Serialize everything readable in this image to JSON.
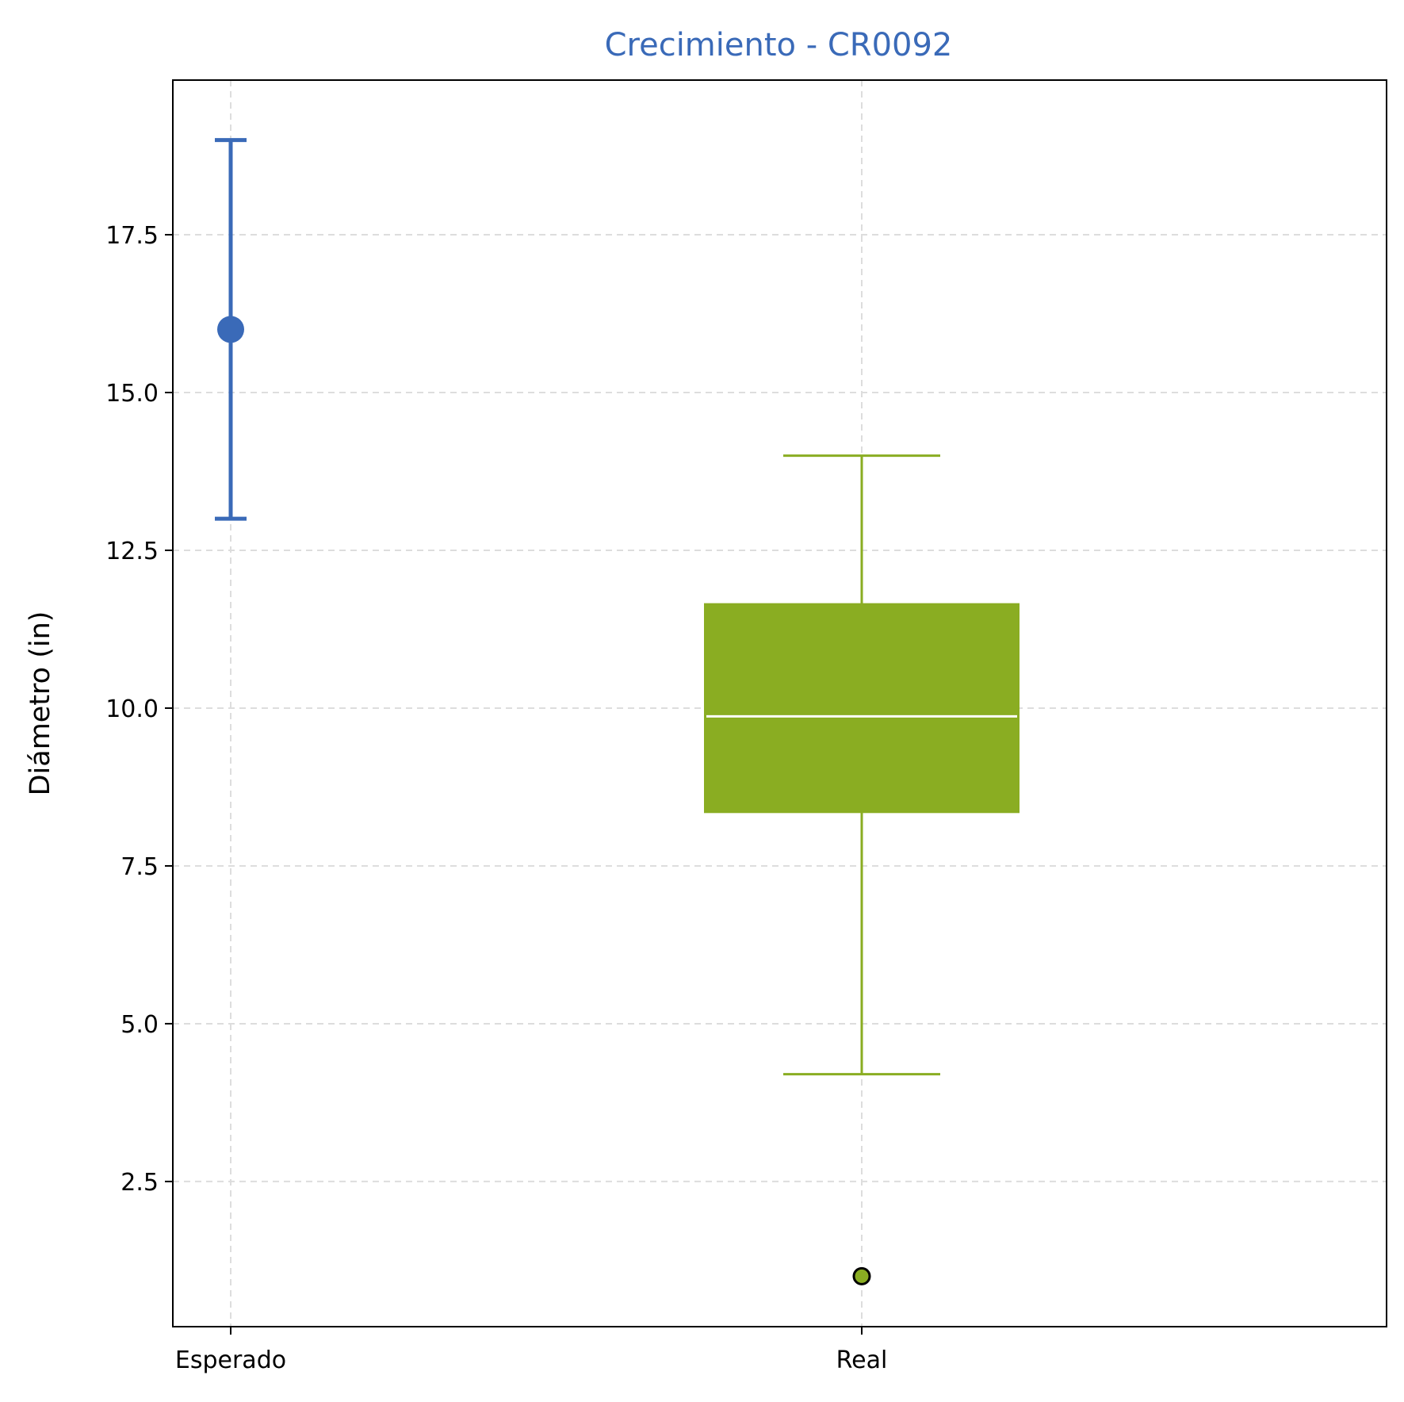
{
  "chart_data": {
    "type": "boxplot",
    "title": "Crecimiento - CR0092",
    "xlabel": "",
    "ylabel": "Diámetro (in)",
    "categories": [
      "Esperado",
      "Real"
    ],
    "ylim": [
      0.2,
      19.95
    ],
    "yticks": [
      2.5,
      5.0,
      7.5,
      10.0,
      12.5,
      15.0,
      17.5
    ],
    "ytick_labels": [
      "2.5",
      "5.0",
      "7.5",
      "10.0",
      "12.5",
      "15.0",
      "17.5"
    ],
    "grid": true,
    "expected": {
      "category": "Esperado",
      "value": 16.0,
      "low": 13.0,
      "high": 19.0
    },
    "actual": {
      "category": "Real",
      "whisker_low": 4.2,
      "q1": 8.35,
      "median": 9.87,
      "q3": 11.65,
      "whisker_high": 14.0,
      "outliers": [
        1.0
      ]
    },
    "colors": {
      "expected": "#3a6ab8",
      "actual": "#8aad22",
      "title": "#3a6ab8",
      "median": "#ffffff",
      "grid": "#dddddd"
    }
  }
}
